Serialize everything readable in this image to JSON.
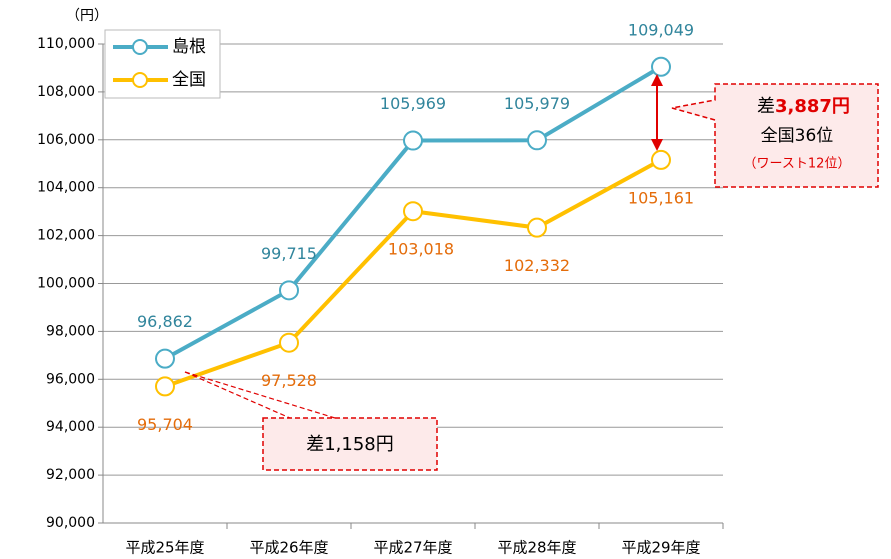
{
  "chart_data": {
    "type": "line",
    "unit_label": "（円）",
    "categories": [
      "平成25年度",
      "平成26年度",
      "平成27年度",
      "平成28年度",
      "平成29年度"
    ],
    "series": [
      {
        "name": "島根",
        "color": "#4bacc6",
        "label_color": "#31859c",
        "values": [
          96862,
          99715,
          105969,
          105979,
          109049
        ],
        "value_labels": [
          "96,862",
          "99,715",
          "105,969",
          "105,979",
          "109,049"
        ]
      },
      {
        "name": "全国",
        "color": "#ffc000",
        "label_color": "#e46c0a",
        "values": [
          95704,
          97528,
          103018,
          102332,
          105161
        ],
        "value_labels": [
          "95,704",
          "97,528",
          "103,018",
          "102,332",
          "105,161"
        ]
      }
    ],
    "ylim": [
      90000,
      110000
    ],
    "yticks": [
      {
        "value": 90000,
        "label": "90,000"
      },
      {
        "value": 92000,
        "label": "92,000"
      },
      {
        "value": 94000,
        "label": "94,000"
      },
      {
        "value": 96000,
        "label": "96,000"
      },
      {
        "value": 98000,
        "label": "98,000"
      },
      {
        "value": 100000,
        "label": "100,000"
      },
      {
        "value": 102000,
        "label": "102,000"
      },
      {
        "value": 104000,
        "label": "104,000"
      },
      {
        "value": 106000,
        "label": "106,000"
      },
      {
        "value": 108000,
        "label": "108,000"
      },
      {
        "value": 110000,
        "label": "110,000"
      }
    ],
    "grid": true,
    "legend": "top-left",
    "annotations": {
      "diff_top_prefix": "差",
      "diff_top_value": "3,887円",
      "rank": "全国36位",
      "worst": "（ワースト12位）",
      "diff_bottom": "差1,158円"
    }
  }
}
